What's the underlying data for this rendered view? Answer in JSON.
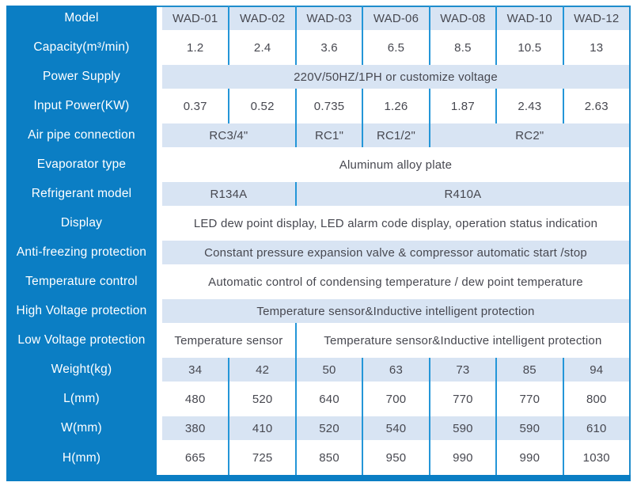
{
  "colors": {
    "primary_blue": "#0b7ec4",
    "divider_blue": "#2496d8",
    "outer_border_blue": "#1f8ccc",
    "band_background": "#d8e4f3",
    "data_text": "#474850",
    "label_text": "#ffffff"
  },
  "chart_data": {
    "type": "table",
    "models": [
      "WAD-01",
      "WAD-02",
      "WAD-03",
      "WAD-06",
      "WAD-08",
      "WAD-10",
      "WAD-12"
    ],
    "capacity_m3_min": [
      1.2,
      2.4,
      3.6,
      6.5,
      8.5,
      10.5,
      13
    ],
    "input_power_kw": [
      0.37,
      0.52,
      0.735,
      1.26,
      1.87,
      2.43,
      2.63
    ],
    "weight_kg": [
      34,
      42,
      50,
      63,
      73,
      85,
      94
    ],
    "l_mm": [
      480,
      520,
      640,
      700,
      770,
      770,
      800
    ],
    "w_mm": [
      380,
      410,
      520,
      540,
      590,
      590,
      610
    ],
    "h_mm": [
      665,
      725,
      850,
      950,
      990,
      990,
      1030
    ]
  },
  "rows": [
    {
      "label": "Model",
      "cells": [
        "WAD-01",
        "WAD-02",
        "WAD-03",
        "WAD-06",
        "WAD-08",
        "WAD-10",
        "WAD-12"
      ]
    },
    {
      "label": "Capacity(m³/min)",
      "cells": [
        "1.2",
        "2.4",
        "3.6",
        "6.5",
        "8.5",
        "10.5",
        "13"
      ]
    },
    {
      "label": "Power Supply",
      "cells": [
        "220V/50HZ/1PH or customize voltage"
      ]
    },
    {
      "label": "Input Power(KW)",
      "cells": [
        "0.37",
        "0.52",
        "0.735",
        "1.26",
        "1.87",
        "2.43",
        "2.63"
      ]
    },
    {
      "label": "Air pipe connection",
      "cells": [
        "RC3/4\"",
        "RC1\"",
        "RC1/2\"",
        "RC2\""
      ]
    },
    {
      "label": "Evaporator type",
      "cells": [
        "Aluminum alloy plate"
      ]
    },
    {
      "label": "Refrigerant model",
      "cells": [
        "R134A",
        "R410A"
      ]
    },
    {
      "label": "Display",
      "cells": [
        "LED dew point display, LED alarm code display, operation status indication"
      ]
    },
    {
      "label": "Anti-freezing protection",
      "cells": [
        "Constant pressure expansion valve & compressor automatic start /stop"
      ]
    },
    {
      "label": "Temperature control",
      "cells": [
        "Automatic control of condensing temperature / dew point temperature"
      ]
    },
    {
      "label": "High Voltage protection",
      "cells": [
        "Temperature sensor&Inductive intelligent protection"
      ]
    },
    {
      "label": "Low Voltage protection",
      "cells": [
        "Temperature sensor",
        "Temperature sensor&Inductive intelligent protection"
      ]
    },
    {
      "label": "Weight(kg)",
      "cells": [
        "34",
        "42",
        "50",
        "63",
        "73",
        "85",
        "94"
      ]
    },
    {
      "label": "L(mm)",
      "cells": [
        "480",
        "520",
        "640",
        "700",
        "770",
        "770",
        "800"
      ]
    },
    {
      "label": "W(mm)",
      "cells": [
        "380",
        "410",
        "520",
        "540",
        "590",
        "590",
        "610"
      ]
    },
    {
      "label": "H(mm)",
      "cells": [
        "665",
        "725",
        "850",
        "950",
        "990",
        "990",
        "1030"
      ]
    }
  ]
}
